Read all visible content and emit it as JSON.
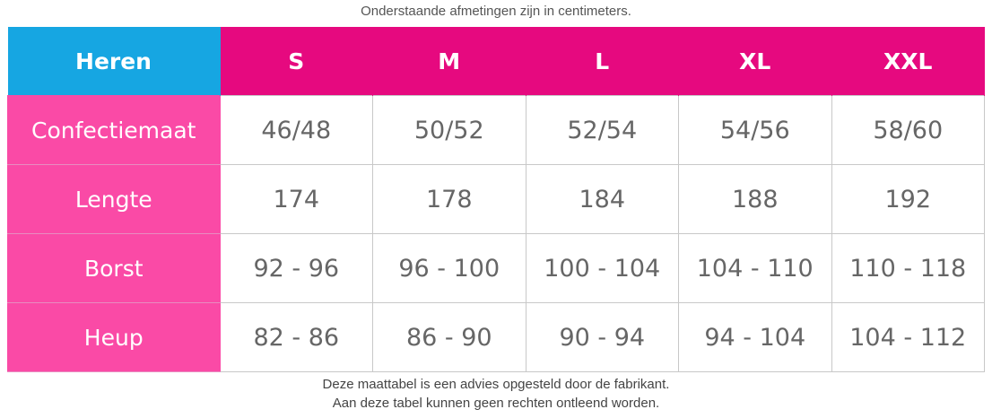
{
  "header": {
    "note": "Onderstaande afmetingen zijn in centimeters."
  },
  "table": {
    "columns": [
      "Heren",
      "S",
      "M",
      "L",
      "XL",
      "XXL"
    ],
    "rows": [
      [
        "Confectiemaat",
        "46/48",
        "50/52",
        "52/54",
        "54/56",
        "58/60"
      ],
      [
        "Lengte",
        "174",
        "178",
        "184",
        "188",
        "192"
      ],
      [
        "Borst",
        "92 - 96",
        "96 - 100",
        "100 - 104",
        "104 - 110",
        "110 - 118"
      ],
      [
        "Heup",
        "82 - 86",
        "86 - 90",
        "90 - 94",
        "94 - 104",
        "104 - 112"
      ]
    ]
  },
  "footer": {
    "lines": [
      "Deze maattabel is een advies opgesteld door de fabrikant.",
      "Aan deze tabel kunnen geen rechten ontleend worden."
    ]
  }
}
